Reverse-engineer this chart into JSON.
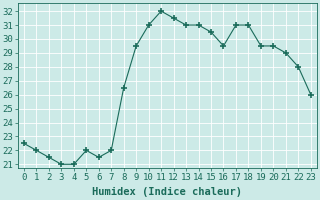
{
  "x": [
    0,
    1,
    2,
    3,
    4,
    5,
    6,
    7,
    8,
    9,
    10,
    11,
    12,
    13,
    14,
    15,
    16,
    17,
    18,
    19,
    20,
    21,
    22,
    23
  ],
  "y": [
    22.5,
    22.0,
    21.5,
    21.0,
    21.0,
    22.0,
    21.5,
    22.0,
    26.5,
    29.5,
    31.0,
    32.0,
    31.5,
    31.0,
    31.0,
    30.5,
    29.5,
    31.0,
    31.0,
    29.5,
    29.5,
    29.0,
    28.0,
    26.0
  ],
  "line_color": "#1a6b5a",
  "marker": "+",
  "marker_size": 4,
  "marker_lw": 1.2,
  "xlabel": "Humidex (Indice chaleur)",
  "xlim": [
    -0.5,
    23.5
  ],
  "ylim": [
    20.7,
    32.6
  ],
  "yticks": [
    21,
    22,
    23,
    24,
    25,
    26,
    27,
    28,
    29,
    30,
    31,
    32
  ],
  "xticks": [
    0,
    1,
    2,
    3,
    4,
    5,
    6,
    7,
    8,
    9,
    10,
    11,
    12,
    13,
    14,
    15,
    16,
    17,
    18,
    19,
    20,
    21,
    22,
    23
  ],
  "bg_color": "#cceae7",
  "grid_color": "#ffffff",
  "tick_color": "#1a6b5a",
  "font_size": 6.5,
  "xlabel_fontsize": 7.5
}
